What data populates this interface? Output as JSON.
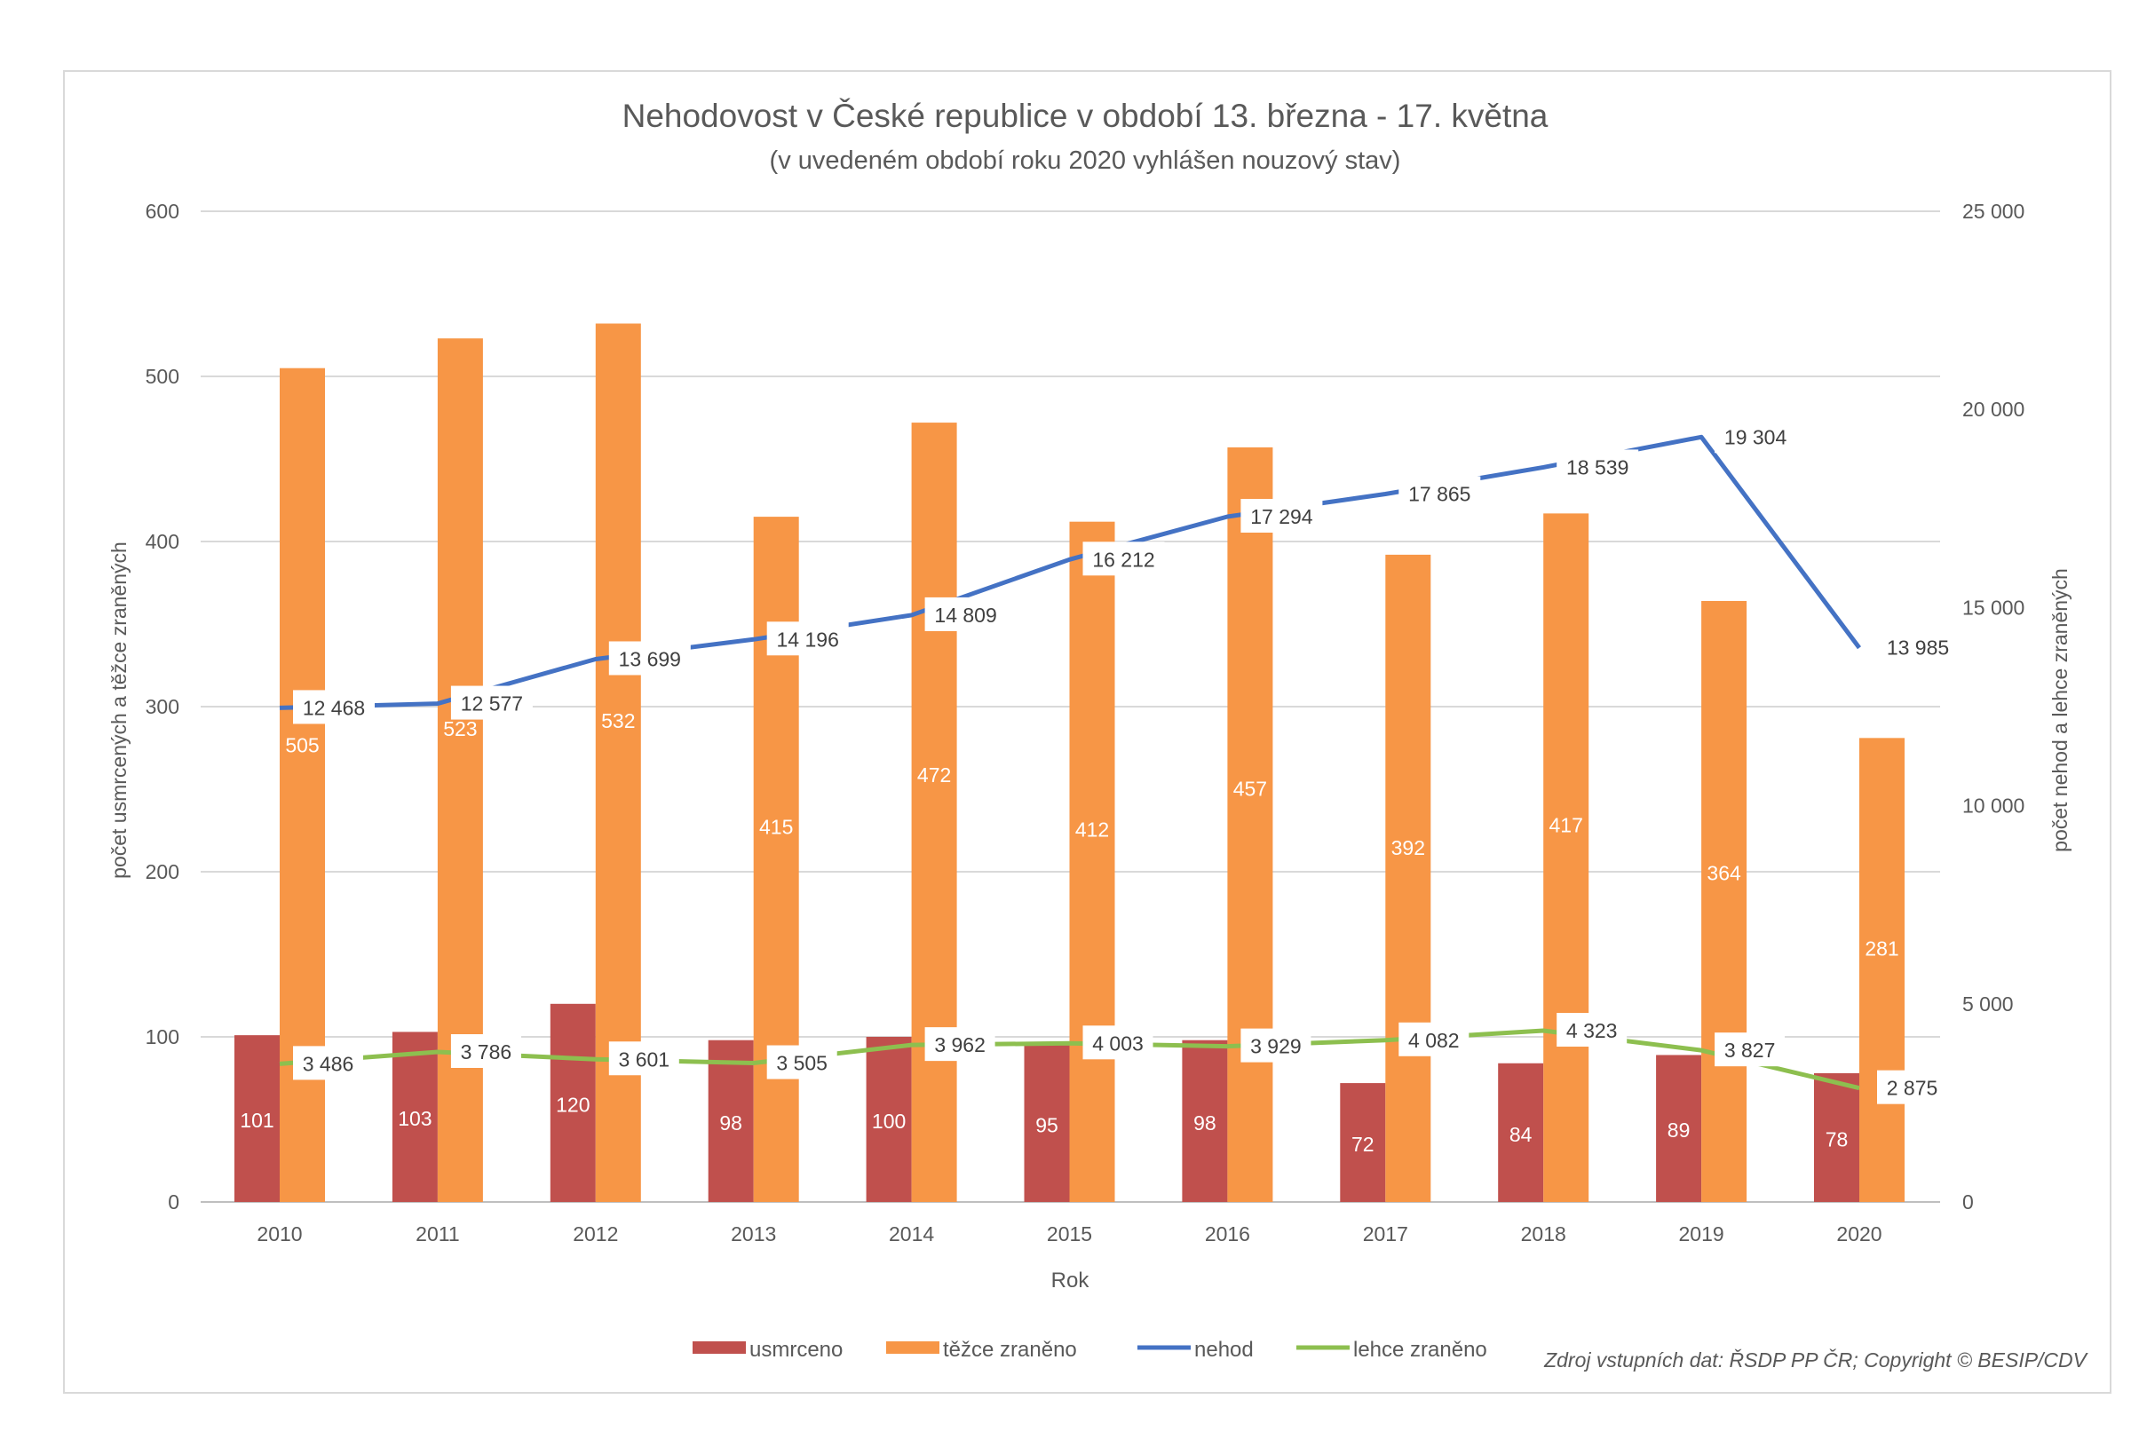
{
  "chart_data": {
    "type": "bar",
    "title": "Nehodovost v České republice v období 13. března - 17. května",
    "subtitle": "(v uvedeném období roku 2020 vyhlášen nouzový stav)",
    "xlabel": "Rok",
    "ylabel": "počet usmrcených a těžce zraněných",
    "ylabel_right": "počet nehod a lehce zraněných",
    "ylim": [
      0,
      600
    ],
    "ylim_right": [
      0,
      25000
    ],
    "yticks": [
      "0",
      "100",
      "200",
      "300",
      "400",
      "500",
      "600"
    ],
    "yticks_right": [
      "0",
      "5 000",
      "10 000",
      "15 000",
      "20 000",
      "25 000"
    ],
    "grid": true,
    "legend_position": "bottom",
    "categories": [
      "2010",
      "2011",
      "2012",
      "2013",
      "2014",
      "2015",
      "2016",
      "2017",
      "2018",
      "2019",
      "2020"
    ],
    "series": [
      {
        "name": "usmrceno",
        "type": "bar",
        "axis": "left",
        "color": "#C0504D",
        "values": [
          101,
          103,
          120,
          98,
          100,
          95,
          98,
          72,
          84,
          89,
          78
        ],
        "labels": [
          "101",
          "103",
          "120",
          "98",
          "100",
          "95",
          "98",
          "72",
          "84",
          "89",
          "78"
        ]
      },
      {
        "name": "těžce zraněno",
        "type": "bar",
        "axis": "left",
        "color": "#F79646",
        "values": [
          505,
          523,
          532,
          415,
          472,
          412,
          457,
          392,
          417,
          364,
          281
        ],
        "labels": [
          "505",
          "523",
          "532",
          "415",
          "472",
          "412",
          "457",
          "392",
          "417",
          "364",
          "281"
        ]
      },
      {
        "name": "nehod",
        "type": "line",
        "axis": "right",
        "color": "#4472C4",
        "values": [
          12468,
          12577,
          13699,
          14196,
          14809,
          16212,
          17294,
          17865,
          18539,
          19304,
          13985
        ],
        "labels": [
          "12 468",
          "12 577",
          "13 699",
          "14 196",
          "14 809",
          "16 212",
          "17 294",
          "17 865",
          "18 539",
          "19 304",
          "13 985"
        ]
      },
      {
        "name": "lehce zraněno",
        "type": "line",
        "axis": "right",
        "color": "#8DBF4F",
        "values": [
          3486,
          3786,
          3601,
          3505,
          3962,
          4003,
          3929,
          4082,
          4323,
          3827,
          2875
        ],
        "labels": [
          "3 486",
          "3 786",
          "3 601",
          "3 505",
          "3 962",
          "4 003",
          "3 929",
          "4 082",
          "4 323",
          "3 827",
          "2 875"
        ]
      }
    ],
    "source_note": "Zdroj vstupních dat: ŘSDP PP ČR; Copyright © BESIP/CDV"
  }
}
